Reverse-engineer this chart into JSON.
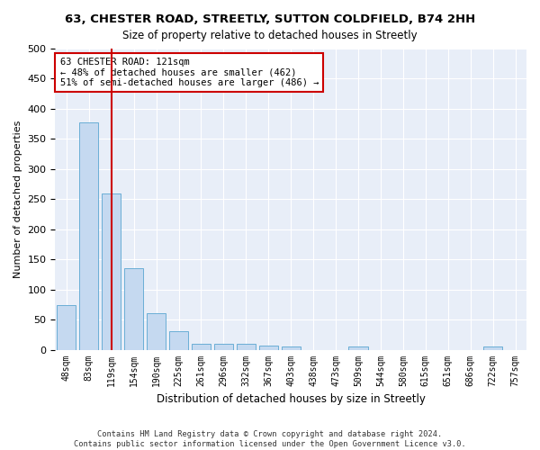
{
  "title1": "63, CHESTER ROAD, STREETLY, SUTTON COLDFIELD, B74 2HH",
  "title2": "Size of property relative to detached houses in Streetly",
  "xlabel": "Distribution of detached houses by size in Streetly",
  "ylabel": "Number of detached properties",
  "categories": [
    "48sqm",
    "83sqm",
    "119sqm",
    "154sqm",
    "190sqm",
    "225sqm",
    "261sqm",
    "296sqm",
    "332sqm",
    "367sqm",
    "403sqm",
    "438sqm",
    "473sqm",
    "509sqm",
    "544sqm",
    "580sqm",
    "615sqm",
    "651sqm",
    "686sqm",
    "722sqm",
    "757sqm"
  ],
  "values": [
    74,
    378,
    259,
    136,
    61,
    30,
    10,
    10,
    10,
    7,
    6,
    0,
    0,
    5,
    0,
    0,
    0,
    0,
    0,
    5,
    0
  ],
  "bar_color": "#c5d9f0",
  "bar_edge_color": "#6aaed6",
  "vline_color": "#cc0000",
  "annotation_text": "63 CHESTER ROAD: 121sqm\n← 48% of detached houses are smaller (462)\n51% of semi-detached houses are larger (486) →",
  "annotation_box_color": "#ffffff",
  "annotation_box_edge_color": "#cc0000",
  "ylim": [
    0,
    500
  ],
  "yticks": [
    0,
    50,
    100,
    150,
    200,
    250,
    300,
    350,
    400,
    450,
    500
  ],
  "footer1": "Contains HM Land Registry data © Crown copyright and database right 2024.",
  "footer2": "Contains public sector information licensed under the Open Government Licence v3.0.",
  "bg_color": "#ffffff",
  "plot_bg_color": "#e8eef8",
  "grid_color": "#ffffff"
}
